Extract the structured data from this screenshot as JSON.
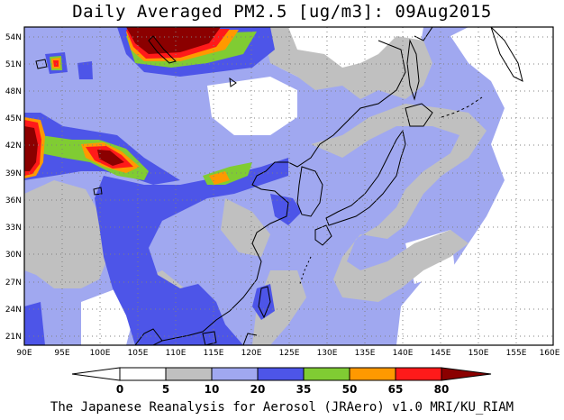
{
  "title": "Daily Averaged PM2.5 [ug/m3]: 09Aug2015",
  "footer": "The Japanese Reanalysis for Aerosol (JRAero) v1.0 MRI/KU_RIAM",
  "map": {
    "lon_ticks": [
      "90E",
      "95E",
      "100E",
      "105E",
      "110E",
      "115E",
      "120E",
      "125E",
      "130E",
      "135E",
      "140E",
      "145E",
      "150E",
      "155E",
      "160E"
    ],
    "lat_ticks": [
      "54N",
      "51N",
      "48N",
      "45N",
      "42N",
      "39N",
      "36N",
      "33N",
      "30N",
      "27N",
      "24N",
      "21N"
    ],
    "lon_range": [
      90,
      160
    ],
    "lat_range": [
      20,
      55
    ]
  },
  "colorbar": {
    "labels": [
      "0",
      "5",
      "10",
      "20",
      "35",
      "50",
      "65",
      "80"
    ],
    "colors": [
      "#ffffff",
      "#ffffff",
      "#c0c0c0",
      "#a0a8f0",
      "#4d55e8",
      "#80cc33",
      "#ff9900",
      "#ff1a1a",
      "#8b0000"
    ]
  },
  "colors": {
    "grey": "#c0c0c0",
    "lavender": "#a0a8f0",
    "blue": "#4d55e8",
    "green": "#80cc33",
    "orange": "#ff9900",
    "red": "#ff1a1a",
    "darkred": "#8b0000"
  }
}
